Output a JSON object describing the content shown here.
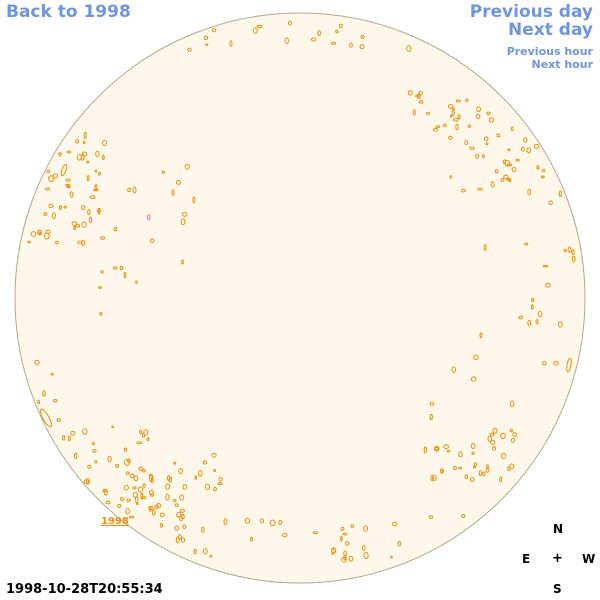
{
  "nav": {
    "back": "Back to 1998",
    "previous_day": "Previous day",
    "next_day": "Next day",
    "previous_hour": "Previous hour",
    "next_hour": "Next hour"
  },
  "timestamp": "1998-10-28T20:55:34",
  "year_label": "1998",
  "compass": {
    "north": "N",
    "east": "E",
    "center": "+",
    "west": "W",
    "south": "S"
  },
  "colors": {
    "disk_fill": "#fdf8ea",
    "disk_edge": "#b5a98e",
    "feature": "#e8900e",
    "link": "#6f95dc"
  }
}
